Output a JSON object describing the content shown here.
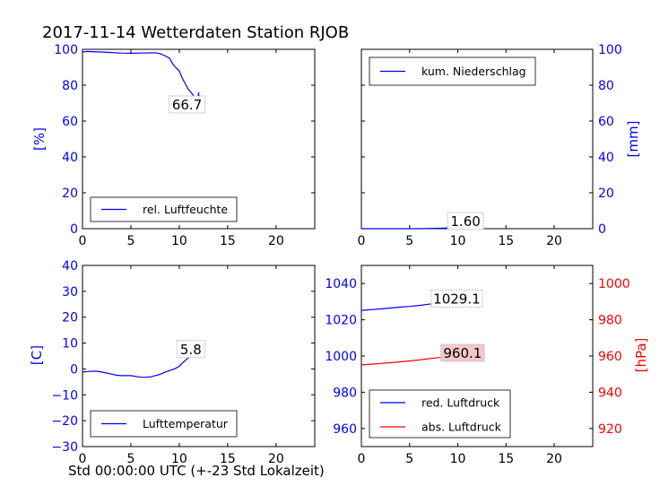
{
  "title": "2017-11-14 Wetterdaten Station RJOB",
  "xlabel": "Std 00:00:00 UTC (+-23 Std Lokalzeit)",
  "colors": {
    "blue": "#0000ff",
    "red": "#ff0000",
    "black": "#000000"
  },
  "chart_data": [
    {
      "type": "line",
      "name": "humidity",
      "ylabel": "[%]",
      "ylabel_color": "#0000ff",
      "ylim": [
        0,
        100
      ],
      "yticks": [
        "0",
        "20",
        "40",
        "60",
        "80",
        "100"
      ],
      "xlim": [
        0,
        24
      ],
      "xticks": [
        "0",
        "5",
        "10",
        "15",
        "20"
      ],
      "legend_position": "lower-left",
      "series": [
        {
          "name": "rel. Luftfeuchte",
          "color": "#0000ff",
          "x": [
            0,
            0.5,
            1,
            2,
            3,
            4,
            5,
            6,
            7,
            7.5,
            8,
            8.5,
            9,
            9.3,
            9.6,
            10,
            10.3,
            10.6,
            10.9,
            11.2,
            11.5,
            11.7,
            11.9,
            12.0,
            12.1,
            12.2,
            12.3
          ],
          "y": [
            98.5,
            98.8,
            98.7,
            98.5,
            98.2,
            97.9,
            97.8,
            97.9,
            98,
            98.1,
            97.6,
            96.5,
            95,
            92,
            90,
            88,
            84,
            81,
            78,
            76,
            74,
            72,
            70,
            76,
            69,
            71,
            67
          ]
        }
      ],
      "annotations": [
        {
          "text": "66.7",
          "x": 10.8,
          "y": 69
        }
      ]
    },
    {
      "type": "line",
      "name": "precipitation",
      "ylabel": "[mm]",
      "ylabel_color": "#0000ff",
      "ylim": [
        0,
        100
      ],
      "yticks": [
        "0",
        "20",
        "40",
        "60",
        "80",
        "100"
      ],
      "xlim": [
        0,
        24
      ],
      "xticks": [
        "0",
        "5",
        "10",
        "15",
        "20"
      ],
      "legend_position": "top-left",
      "series": [
        {
          "name": "kum. Niederschlag",
          "color": "#0000ff",
          "x": [
            0,
            2,
            4,
            6,
            8,
            10,
            12,
            12.3
          ],
          "y": [
            0,
            0,
            0,
            0,
            0.2,
            0.6,
            1.2,
            1.6
          ]
        }
      ],
      "annotations": [
        {
          "text": "1.60",
          "x": 10.8,
          "y": 4
        }
      ]
    },
    {
      "type": "line",
      "name": "temperature",
      "ylabel": "[C]",
      "ylabel_color": "#0000ff",
      "ylim": [
        -30,
        40
      ],
      "yticks": [
        "−30",
        "−20",
        "−10",
        "0",
        "10",
        "20",
        "30",
        "40"
      ],
      "xlim": [
        0,
        24
      ],
      "xticks": [
        "0",
        "5",
        "10",
        "15",
        "20"
      ],
      "legend_position": "lower-left",
      "series": [
        {
          "name": "Lufttemperatur",
          "color": "#0000ff",
          "x": [
            0,
            0.5,
            1,
            1.5,
            2,
            2.5,
            3,
            3.5,
            4,
            4.5,
            5,
            5.5,
            6,
            6.5,
            7,
            7.5,
            8,
            8.5,
            9,
            9.5,
            10,
            10.3,
            10.6,
            10.9,
            11.2,
            11.5,
            11.8,
            12.1,
            12.3
          ],
          "y": [
            -1.2,
            -1.0,
            -0.9,
            -0.9,
            -1.2,
            -1.6,
            -2.0,
            -2.4,
            -2.6,
            -2.6,
            -2.6,
            -2.9,
            -3.2,
            -3.2,
            -3.1,
            -2.6,
            -2.1,
            -1.3,
            -0.6,
            0,
            1.0,
            2.2,
            3.2,
            4.2,
            4.8,
            5.0,
            5.2,
            5.6,
            5.8
          ]
        }
      ],
      "annotations": [
        {
          "text": "5.8",
          "x": 11.2,
          "y": 7.5
        }
      ]
    },
    {
      "type": "line",
      "name": "pressure",
      "ylabel_right": "[hPa]",
      "ylabel_right_color": "#ff0000",
      "ylim_left": [
        950,
        1050
      ],
      "yticks_left": [
        "960",
        "980",
        "1000",
        "1020",
        "1040"
      ],
      "yticks_left_color": "#0000ff",
      "ylim_right": [
        910,
        1010
      ],
      "yticks_right": [
        "920",
        "940",
        "960",
        "980",
        "1000"
      ],
      "yticks_right_color": "#ff0000",
      "xlim": [
        0,
        24
      ],
      "xticks": [
        "0",
        "5",
        "10",
        "15",
        "20"
      ],
      "legend_position": "lower-left",
      "series": [
        {
          "name": "red. Luftdruck",
          "color": "#0000ff",
          "axis": "left",
          "x": [
            0,
            1,
            2,
            3,
            4,
            5,
            6,
            7,
            8,
            9,
            10,
            11,
            12,
            12.3
          ],
          "y": [
            1025.2,
            1025.6,
            1026.0,
            1026.5,
            1027.0,
            1027.4,
            1027.9,
            1028.6,
            1029.1,
            1029.3,
            1029.4,
            1029.3,
            1029.0,
            1029.1
          ]
        },
        {
          "name": "abs. Luftdruck",
          "color": "#ff0000",
          "axis": "right",
          "x": [
            0,
            1,
            2,
            3,
            4,
            5,
            6,
            7,
            8,
            9,
            10,
            11,
            12,
            12.3
          ],
          "y": [
            955.1,
            955.5,
            955.9,
            956.3,
            956.8,
            957.3,
            957.8,
            958.5,
            959.1,
            959.6,
            959.9,
            960.0,
            960.0,
            960.1
          ]
        }
      ],
      "annotations": [
        {
          "text": "1029.1",
          "x": 9.9,
          "y": 1031.5,
          "axis": "left",
          "bg": "#ffffff"
        },
        {
          "text": "960.1",
          "x": 10.5,
          "y": 961.5,
          "axis": "right",
          "bg": "#f4c6c6"
        }
      ]
    }
  ]
}
